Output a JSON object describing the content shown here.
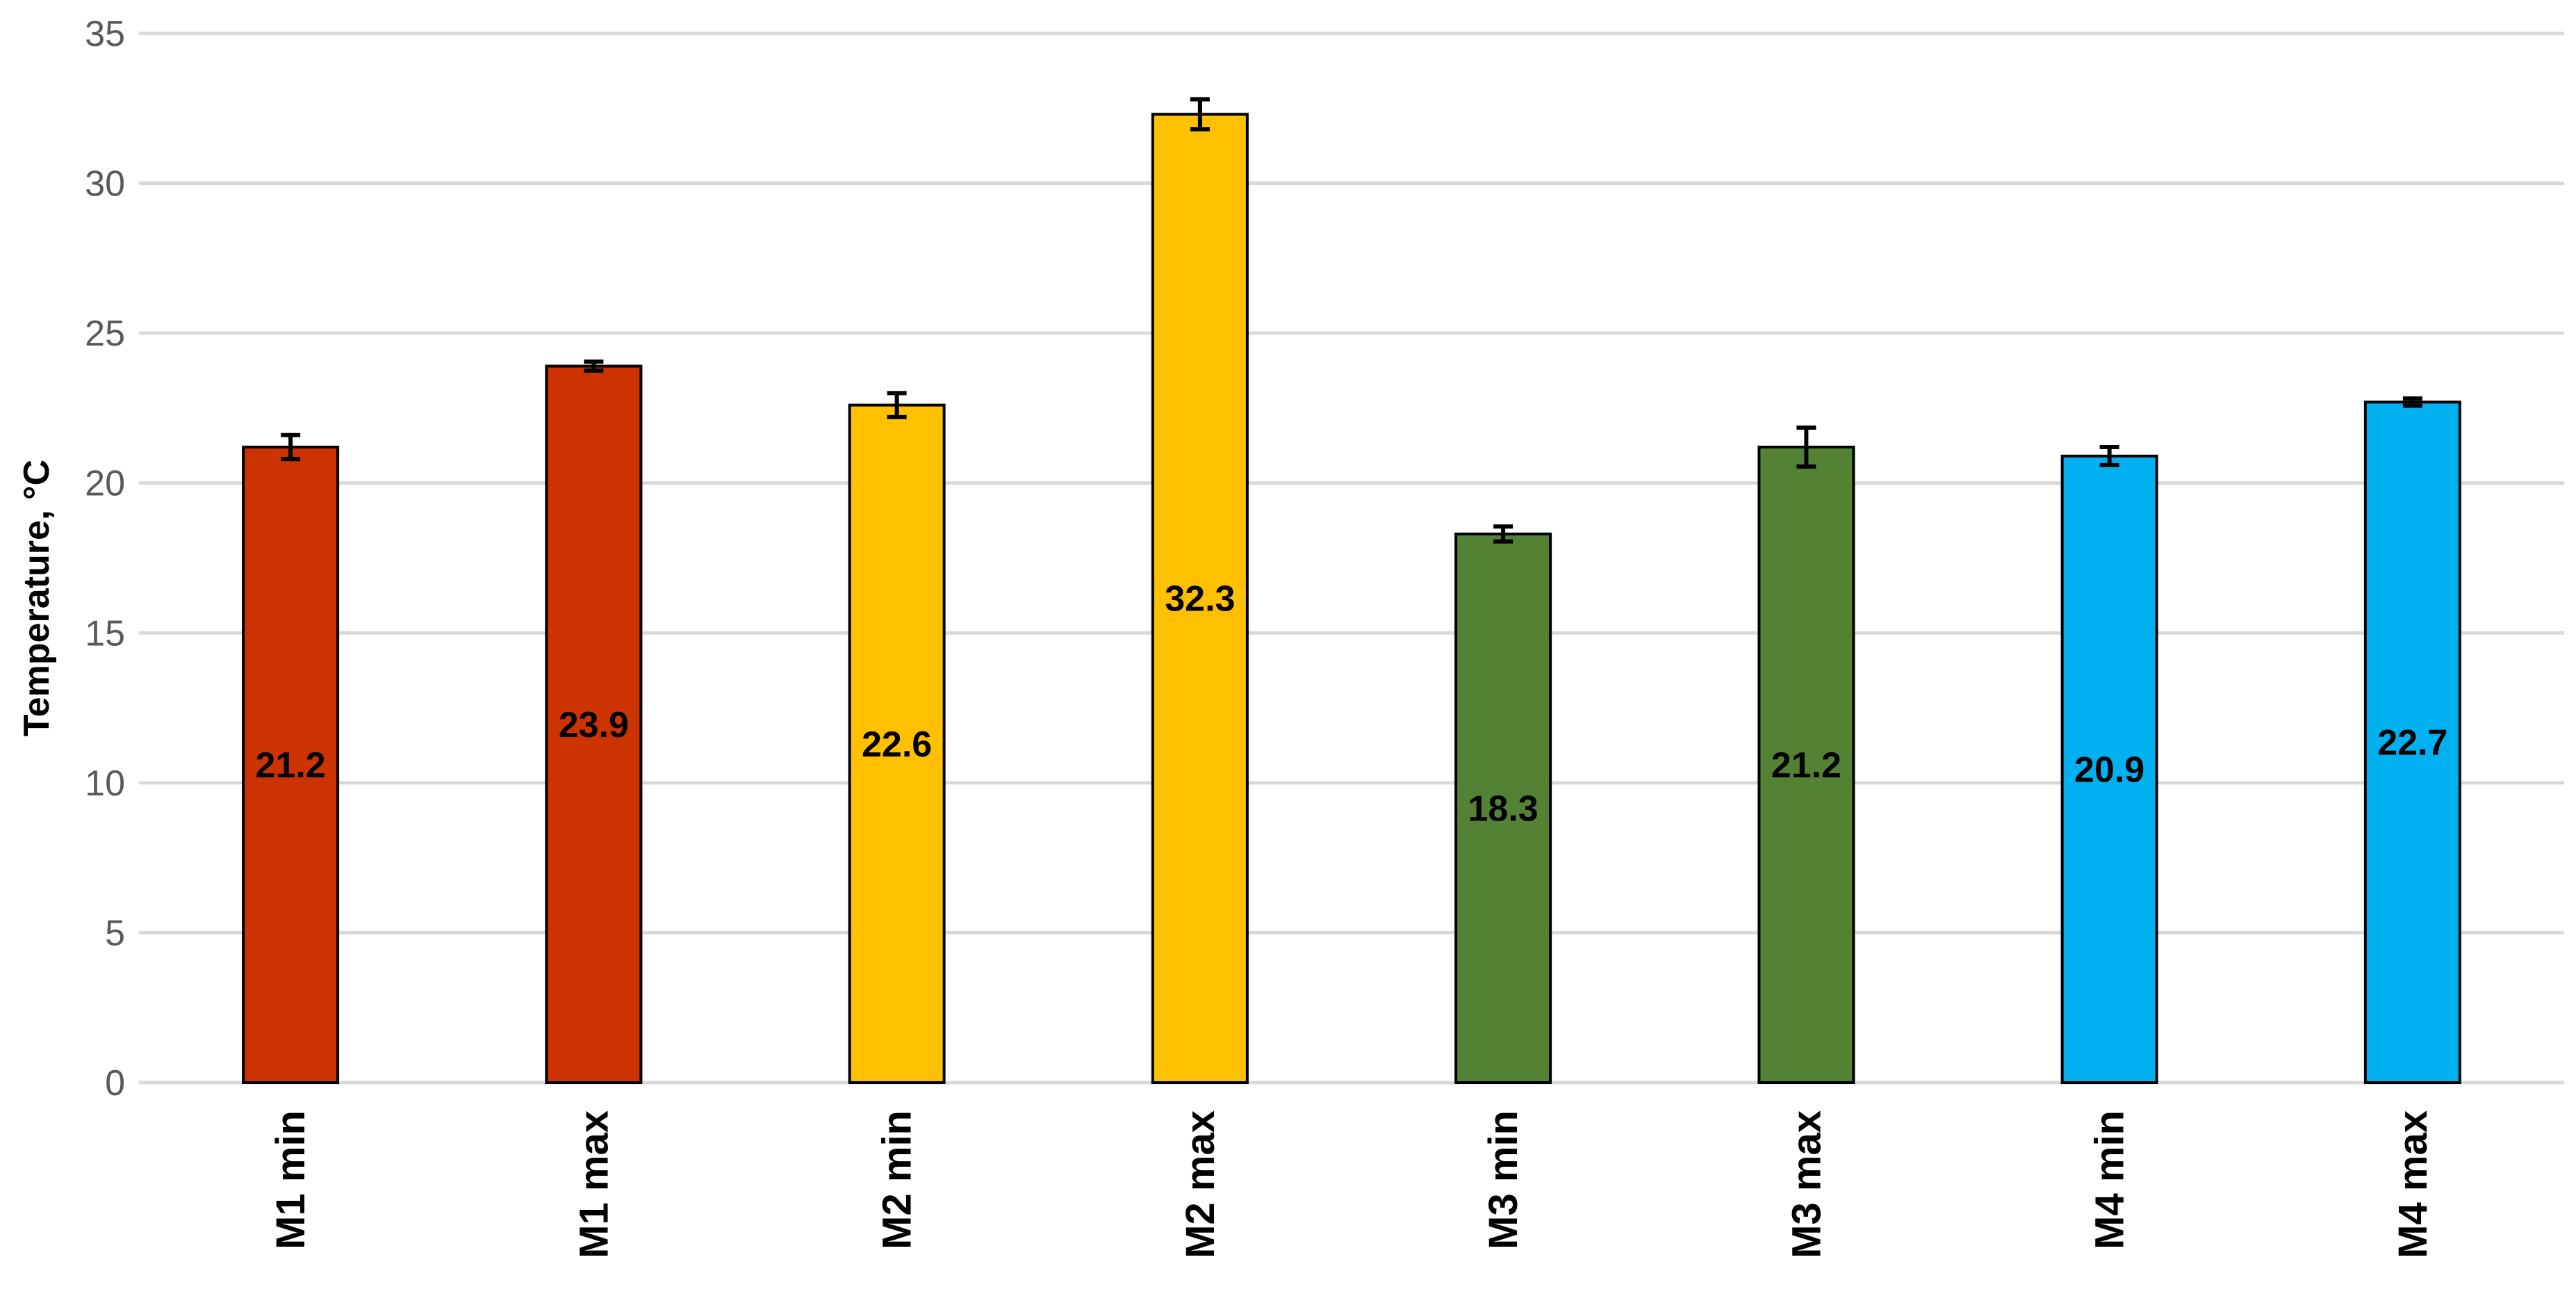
{
  "chart_data": {
    "type": "bar",
    "title": "",
    "xlabel": "",
    "ylabel": "Temperature, °C",
    "ylim": [
      0,
      35
    ],
    "yticks": [
      0,
      5,
      10,
      15,
      20,
      25,
      30,
      35
    ],
    "grid": true,
    "legend": "none",
    "categories": [
      "M1 min",
      "M1 max",
      "M2 min",
      "M2 max",
      "M3 min",
      "M3 max",
      "M4 min",
      "M4 max"
    ],
    "values": [
      21.2,
      23.9,
      22.6,
      32.3,
      18.3,
      21.2,
      20.9,
      22.7
    ],
    "errors": [
      0.4,
      0.15,
      0.4,
      0.5,
      0.25,
      0.65,
      0.3,
      0.12
    ],
    "colors": [
      "#cc3300",
      "#cc3300",
      "#ffc000",
      "#ffc000",
      "#548235",
      "#548235",
      "#00b0f0",
      "#00b0f0"
    ],
    "data_labels": [
      "21.2",
      "23.9",
      "22.6",
      "32.3",
      "18.3",
      "21.2",
      "20.9",
      "22.7"
    ]
  }
}
